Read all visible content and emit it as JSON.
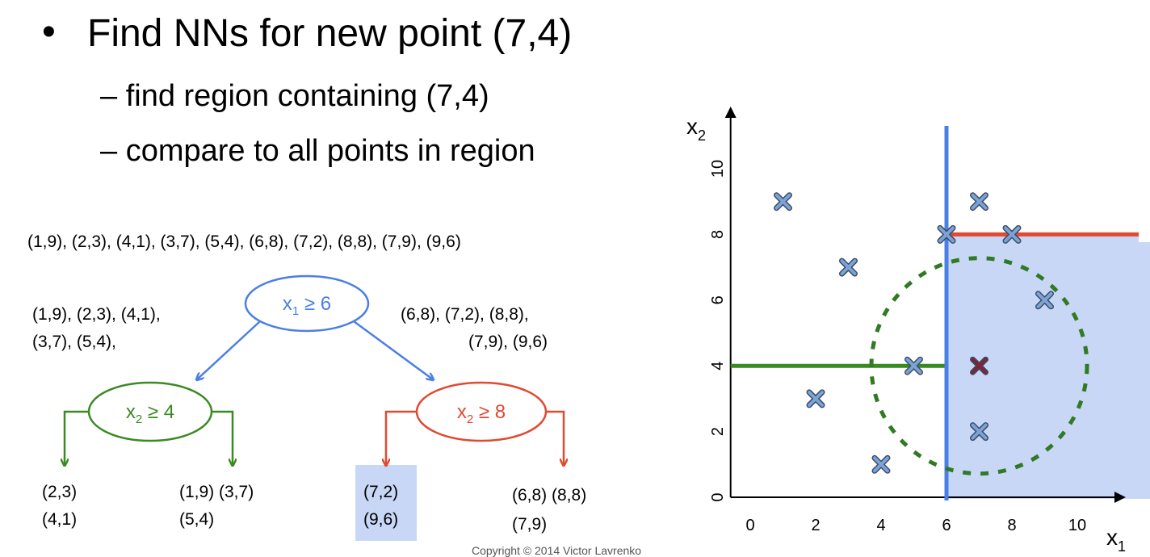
{
  "slide": {
    "bullet": "•",
    "title": "Find NNs for new point (7,4)",
    "sub1": "– find region containing (7,4)",
    "sub2": "– compare to all points in region",
    "copyright": "Copyright © 2014 Victor Lavrenko"
  },
  "tree": {
    "all_points": "(1,9), (2,3), (4,1), (3,7), (5,4), (6,8), (7,2), (8,8), (7,9), (9,6)",
    "left_set_line1": "(1,9), (2,3), (4,1),",
    "left_set_line2": "(3,7), (5,4),",
    "right_set_line1": "(6,8), (7,2), (8,8),",
    "right_set_line2": "(7,9), (9,6)",
    "root": {
      "var": "x",
      "sub": "1",
      "op": " ≥ 6",
      "color": "#4a7fe6"
    },
    "left_node": {
      "var": "x",
      "sub": "2",
      "op": " ≥ 4",
      "color": "#3a8a22"
    },
    "right_node": {
      "var": "x",
      "sub": "2",
      "op": " ≥ 8",
      "color": "#e04a2f"
    },
    "leaves": [
      {
        "line1": "(2,3)",
        "line2": "(4,1)"
      },
      {
        "line1": "(1,9) (3,7)",
        "line2": "(5,4)"
      },
      {
        "line1": "(7,2)",
        "line2": "(9,6)",
        "highlight": true
      },
      {
        "line1": "(6,8) (8,8)",
        "line2": "(7,9)"
      }
    ],
    "highlight_color": "#c9d7f7"
  },
  "plot": {
    "x_axis_label_var": "x",
    "x_axis_label_sub": "1",
    "y_axis_label_var": "x",
    "y_axis_label_sub": "2",
    "x_ticks": [
      "0",
      "2",
      "4",
      "6",
      "8",
      "10"
    ],
    "y_ticks": [
      "0",
      "2",
      "4",
      "6",
      "8",
      "10"
    ],
    "points": [
      [
        1,
        9
      ],
      [
        2,
        3
      ],
      [
        4,
        1
      ],
      [
        3,
        7
      ],
      [
        5,
        4
      ],
      [
        6,
        8
      ],
      [
        7,
        2
      ],
      [
        8,
        8
      ],
      [
        7,
        9
      ],
      [
        9,
        6
      ]
    ],
    "query_point": [
      7,
      4
    ],
    "split_x1": 6,
    "split_x2_left": 4,
    "split_x2_right": 8,
    "search_radius": 3,
    "colors": {
      "split_x1": "#4a7fe6",
      "split_left": "#3a8a22",
      "split_right": "#e04a2f",
      "region_fill": "#c9d7f7",
      "circle": "#2f7a22",
      "point": "#7ba3d4",
      "query": "#7a2838"
    }
  }
}
